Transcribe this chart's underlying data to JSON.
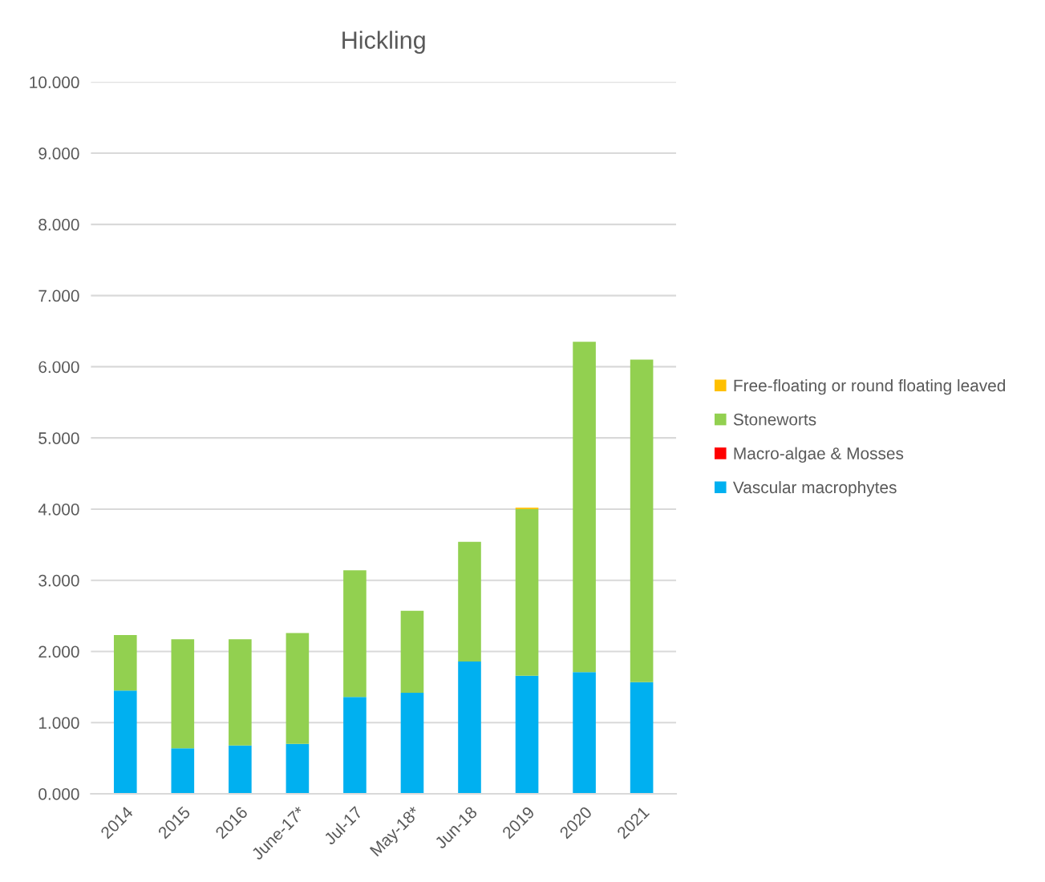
{
  "chart_data": {
    "type": "bar",
    "title": "Hickling",
    "stacked": true,
    "legend": "right",
    "grid": "y",
    "categories": [
      "2014",
      "2015",
      "2016",
      "June-17*",
      "Jul-17",
      "May-18*",
      "Jun-18",
      "2019",
      "2020",
      "2021"
    ],
    "series": [
      {
        "name": "Vascular macrophytes",
        "color": "#00b0f0",
        "values": [
          1.45,
          0.64,
          0.68,
          0.7,
          1.36,
          1.42,
          1.86,
          1.66,
          1.71,
          1.57
        ]
      },
      {
        "name": "Macro-algae & Mosses",
        "color": "#ff0000",
        "values": [
          0,
          0,
          0,
          0,
          0,
          0,
          0,
          0,
          0,
          0
        ]
      },
      {
        "name": "Stoneworts",
        "color": "#92d050",
        "values": [
          0.78,
          1.53,
          1.49,
          1.56,
          1.78,
          1.15,
          1.68,
          2.34,
          4.64,
          4.53
        ]
      },
      {
        "name": "Free-floating or round floating leaved",
        "color": "#ffc000",
        "values": [
          0,
          0,
          0,
          0,
          0,
          0,
          0,
          0.02,
          0,
          0
        ]
      }
    ],
    "ylim": [
      0,
      10
    ],
    "yticks": [
      {
        "value": 0,
        "label": "0.000"
      },
      {
        "value": 1,
        "label": "1.000"
      },
      {
        "value": 2,
        "label": "2.000"
      },
      {
        "value": 3,
        "label": "3.000"
      },
      {
        "value": 4,
        "label": "4.000"
      },
      {
        "value": 5,
        "label": "5.000"
      },
      {
        "value": 6,
        "label": "6.000"
      },
      {
        "value": 7,
        "label": "7.000"
      },
      {
        "value": 8,
        "label": "8.000"
      },
      {
        "value": 9,
        "label": "9.000"
      },
      {
        "value": 10,
        "label": "10.000"
      }
    ]
  }
}
